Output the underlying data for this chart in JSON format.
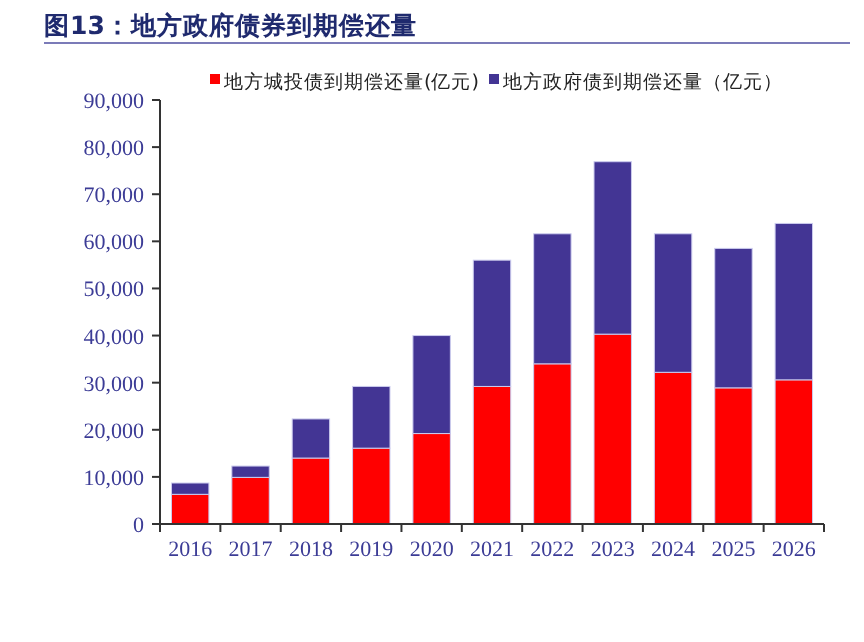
{
  "chart_data": {
    "type": "bar",
    "title": "图13：地方政府债券到期偿还量",
    "stacked": true,
    "categories": [
      "2016",
      "2017",
      "2018",
      "2019",
      "2020",
      "2021",
      "2022",
      "2023",
      "2024",
      "2025",
      "2026"
    ],
    "series": [
      {
        "name": "地方城投债到期偿还量(亿元)",
        "color": "#ff0000",
        "values": [
          6300,
          9900,
          14000,
          16100,
          19200,
          29200,
          34000,
          40300,
          32200,
          28900,
          30600
        ]
      },
      {
        "name": "地方政府债到期偿还量（亿元）",
        "color": "#433594",
        "values": [
          2400,
          2400,
          8300,
          13100,
          20800,
          26800,
          27600,
          36600,
          29400,
          29600,
          33200
        ]
      }
    ],
    "ylim": [
      0,
      90000
    ],
    "yticks": [
      {
        "value": 0,
        "label": "0"
      },
      {
        "value": 10000,
        "label": "10,000"
      },
      {
        "value": 20000,
        "label": "20,000"
      },
      {
        "value": 30000,
        "label": "30,000"
      },
      {
        "value": 40000,
        "label": "40,000"
      },
      {
        "value": 50000,
        "label": "50,000"
      },
      {
        "value": 60000,
        "label": "60,000"
      },
      {
        "value": 70000,
        "label": "70,000"
      },
      {
        "value": 80000,
        "label": "80,000"
      },
      {
        "value": 90000,
        "label": "90,000"
      }
    ],
    "grid": false,
    "legend": "top"
  }
}
